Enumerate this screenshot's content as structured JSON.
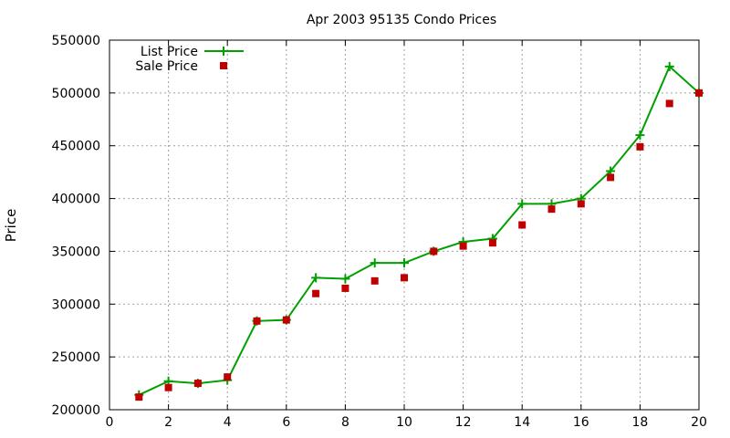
{
  "chart_data": {
    "type": "line",
    "title": "Apr 2003 95135 Condo Prices",
    "xlabel": "",
    "ylabel": "Price",
    "xlim": [
      0,
      20
    ],
    "ylim": [
      200000,
      550000
    ],
    "x_ticks": [
      0,
      2,
      4,
      6,
      8,
      10,
      12,
      14,
      16,
      18,
      20
    ],
    "y_ticks": [
      200000,
      250000,
      300000,
      350000,
      400000,
      450000,
      500000,
      550000
    ],
    "grid": true,
    "legend_position": "top-left",
    "series": [
      {
        "name": "List Price",
        "style": "line-with-plus-markers",
        "color": "#00a000",
        "x": [
          1,
          2,
          3,
          4,
          5,
          6,
          7,
          8,
          9,
          10,
          11,
          12,
          13,
          14,
          15,
          16,
          17,
          18,
          19,
          20
        ],
        "y": [
          214000,
          227000,
          225000,
          228000,
          284000,
          285000,
          325000,
          324000,
          339000,
          339000,
          350000,
          359000,
          362000,
          395000,
          395000,
          400000,
          426000,
          460000,
          525000,
          500000
        ]
      },
      {
        "name": "Sale Price",
        "style": "square-markers",
        "color": "#c00000",
        "x": [
          1,
          2,
          3,
          4,
          5,
          6,
          7,
          8,
          9,
          10,
          11,
          12,
          13,
          14,
          15,
          16,
          17,
          18,
          19,
          20
        ],
        "y": [
          212000,
          221000,
          225000,
          231000,
          284000,
          285000,
          310000,
          315000,
          322000,
          325000,
          350000,
          355000,
          358000,
          375000,
          390000,
          395000,
          420000,
          449000,
          490000,
          500000
        ]
      }
    ]
  }
}
